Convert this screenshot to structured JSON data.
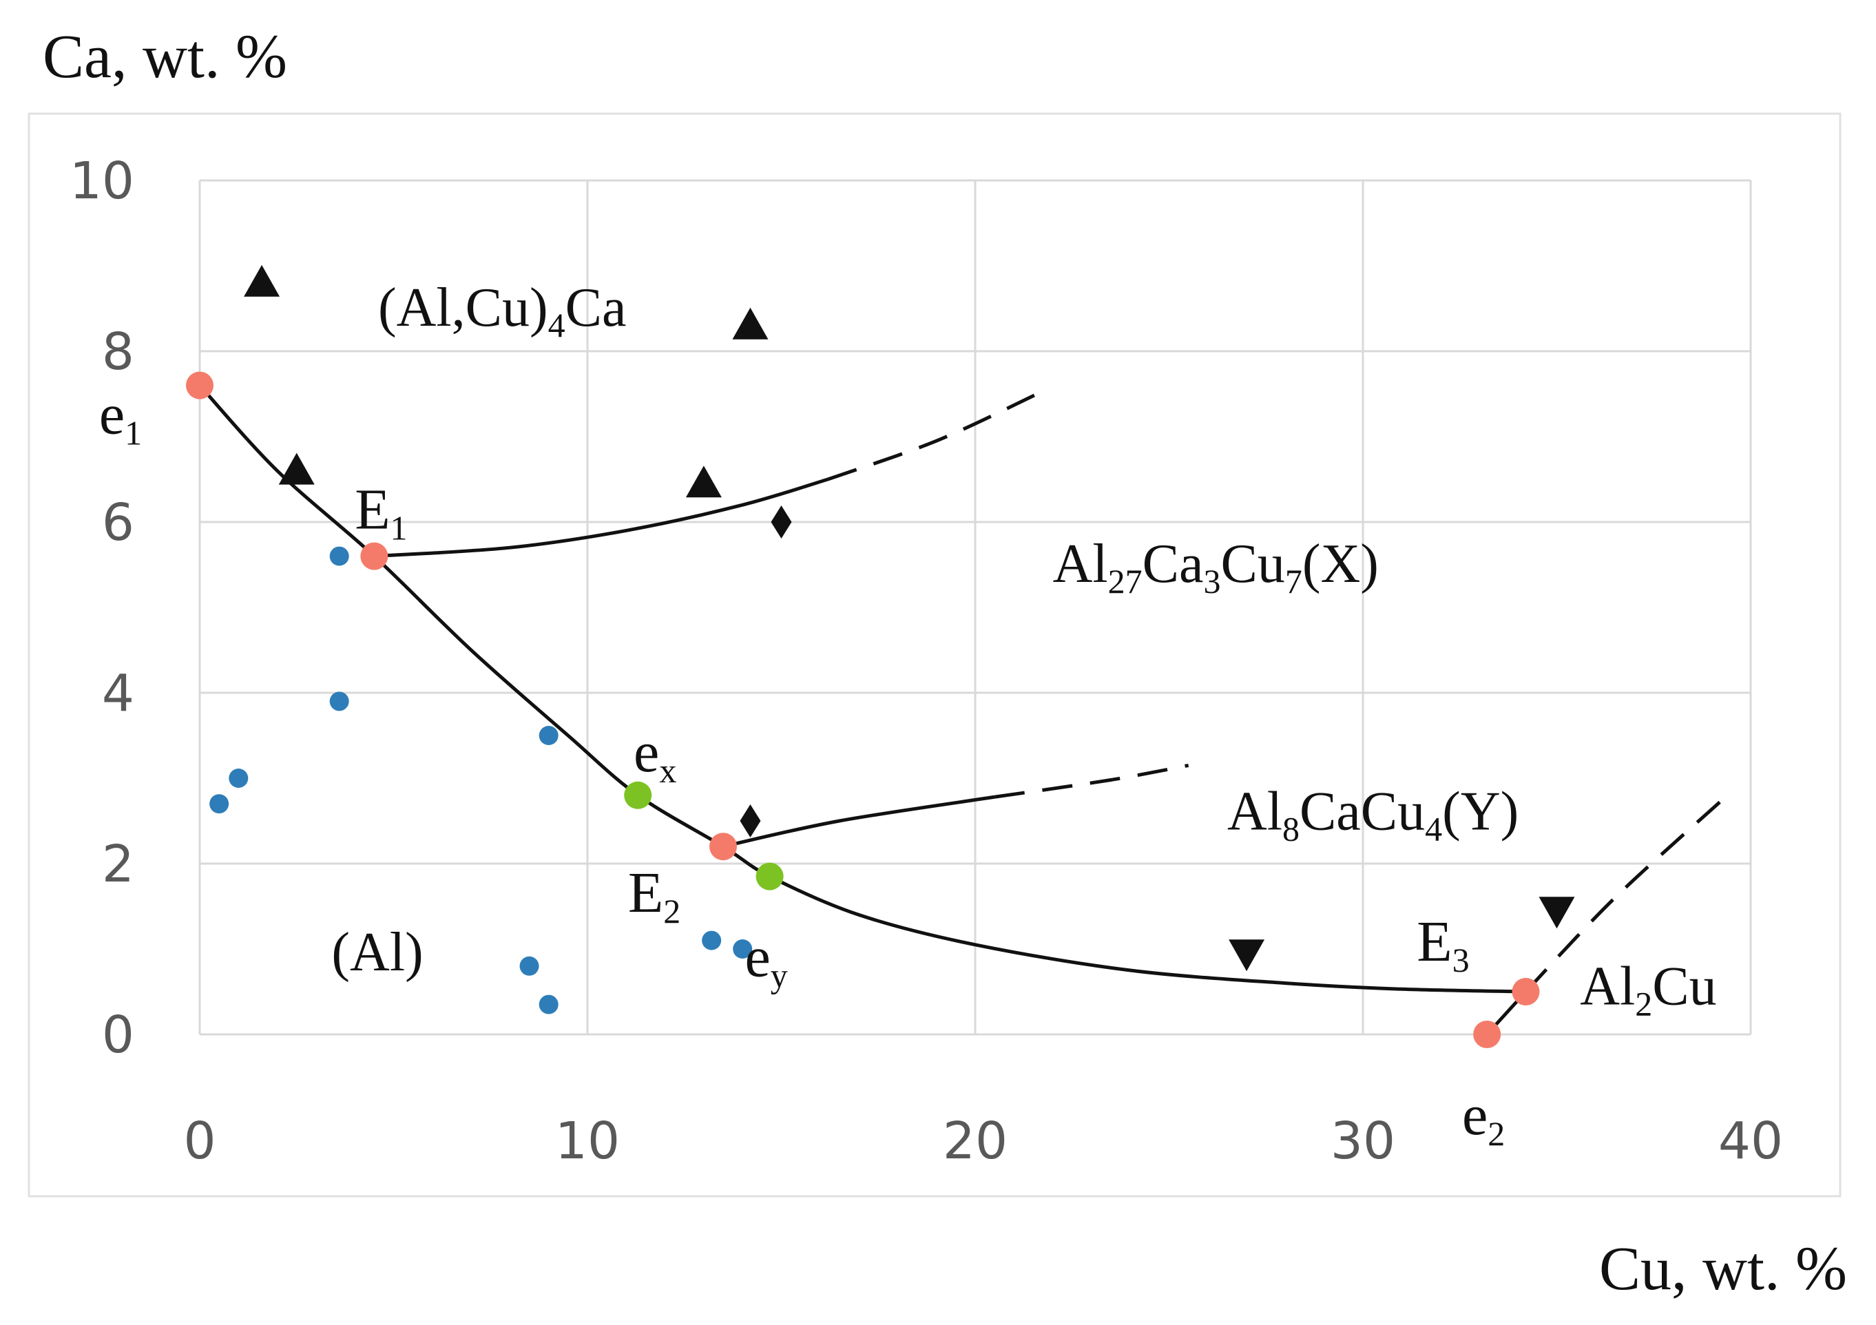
{
  "chart_data": {
    "type": "scatter",
    "ylabel": "Ca, wt. %",
    "xlabel": "Cu, wt. %",
    "xlim": [
      0,
      40
    ],
    "ylim": [
      0,
      10
    ],
    "x_ticks": [
      "0",
      "10",
      "20",
      "30",
      "40"
    ],
    "y_ticks": [
      "0",
      "2",
      "4",
      "6",
      "8",
      "10"
    ],
    "grid": true,
    "colors": {
      "key_point": "#F47B6A",
      "binary_point": "#7CC223",
      "alloy": "#2E7DB8",
      "line": "#111111",
      "grid": "#D9D9D9",
      "frame": "#E0E0E0"
    },
    "curves": [
      {
        "name": "e1-E1-ex-E2-ey-E3",
        "style": "solid",
        "points": [
          [
            0,
            7.6
          ],
          [
            2,
            6.6
          ],
          [
            4.5,
            5.6
          ],
          [
            7,
            4.5
          ],
          [
            9.5,
            3.5
          ],
          [
            11.3,
            2.8
          ],
          [
            13.5,
            2.2
          ],
          [
            14.7,
            1.85
          ],
          [
            17,
            1.4
          ],
          [
            20,
            1.05
          ],
          [
            24,
            0.75
          ],
          [
            28,
            0.6
          ],
          [
            31,
            0.53
          ],
          [
            34.2,
            0.5
          ]
        ]
      },
      {
        "name": "E1-X",
        "style": "solid",
        "points": [
          [
            4.5,
            5.6
          ],
          [
            8,
            5.7
          ],
          [
            11,
            5.9
          ],
          [
            14,
            6.2
          ],
          [
            16.2,
            6.5
          ]
        ]
      },
      {
        "name": "E1-X-ext",
        "style": "dashed",
        "points": [
          [
            16.2,
            6.5
          ],
          [
            19,
            6.95
          ],
          [
            21.6,
            7.5
          ]
        ]
      },
      {
        "name": "E2-Y",
        "style": "solid",
        "points": [
          [
            13.5,
            2.2
          ],
          [
            16.5,
            2.5
          ],
          [
            20.5,
            2.78
          ]
        ]
      },
      {
        "name": "E2-Y-ext",
        "style": "dashed",
        "points": [
          [
            20.5,
            2.78
          ],
          [
            23.5,
            2.98
          ],
          [
            25.5,
            3.15
          ]
        ]
      },
      {
        "name": "e2-E3",
        "style": "solid",
        "points": [
          [
            33.2,
            0
          ],
          [
            34.2,
            0.5
          ]
        ]
      },
      {
        "name": "E3-ext",
        "style": "dashed",
        "points": [
          [
            34.2,
            0.5
          ],
          [
            36.5,
            1.6
          ],
          [
            39.4,
            2.8
          ]
        ]
      }
    ],
    "key_points": [
      {
        "label": "e",
        "sub": "1",
        "x": 0,
        "y": 7.6,
        "color": "key_point",
        "label_pos": "left"
      },
      {
        "label": "E",
        "sub": "1",
        "x": 4.5,
        "y": 5.6,
        "color": "key_point",
        "label_pos": "top"
      },
      {
        "label": "e",
        "sub": "x",
        "x": 11.3,
        "y": 2.8,
        "color": "binary_point",
        "label_pos": "top-right"
      },
      {
        "label": "E",
        "sub": "2",
        "x": 13.5,
        "y": 2.2,
        "color": "key_point",
        "label_pos": "bottom-left"
      },
      {
        "label": "e",
        "sub": "y",
        "x": 14.7,
        "y": 1.85,
        "color": "binary_point",
        "label_pos": "bottom"
      },
      {
        "label": "E",
        "sub": "3",
        "x": 34.2,
        "y": 0.5,
        "color": "key_point",
        "label_pos": "top-left"
      },
      {
        "label": "e",
        "sub": "2",
        "x": 33.2,
        "y": 0.0,
        "color": "key_point",
        "label_pos": "bottom"
      }
    ],
    "alloys": [
      {
        "x": 0.5,
        "y": 2.7
      },
      {
        "x": 1.0,
        "y": 3.0
      },
      {
        "x": 3.6,
        "y": 5.6
      },
      {
        "x": 3.6,
        "y": 3.9
      },
      {
        "x": 9.0,
        "y": 3.5
      },
      {
        "x": 8.5,
        "y": 0.8
      },
      {
        "x": 9.0,
        "y": 0.35
      },
      {
        "x": 13.2,
        "y": 1.1
      },
      {
        "x": 14.0,
        "y": 1.0
      }
    ],
    "markers": [
      {
        "shape": "triangle-up",
        "x": 1.6,
        "y": 8.8
      },
      {
        "shape": "triangle-up",
        "x": 14.2,
        "y": 8.3
      },
      {
        "shape": "triangle-up",
        "x": 2.5,
        "y": 6.6
      },
      {
        "shape": "triangle-up",
        "x": 13.0,
        "y": 6.45
      },
      {
        "shape": "diamond",
        "x": 15.0,
        "y": 6.0
      },
      {
        "shape": "diamond",
        "x": 14.2,
        "y": 2.5
      },
      {
        "shape": "triangle-down",
        "x": 27.0,
        "y": 0.95
      },
      {
        "shape": "triangle-down",
        "x": 35.0,
        "y": 1.45
      }
    ],
    "phase_labels": [
      {
        "parts": [
          [
            "(Al,Cu)",
            ""
          ],
          [
            "4",
            "sub"
          ],
          [
            "Ca",
            ""
          ]
        ],
        "x": 4.6,
        "y": 8.3
      },
      {
        "parts": [
          [
            "Al",
            ""
          ],
          [
            "27",
            "sub"
          ],
          [
            "Ca",
            ""
          ],
          [
            "3",
            "sub"
          ],
          [
            "Cu",
            ""
          ],
          [
            "7",
            "sub"
          ],
          [
            "(X)",
            ""
          ]
        ],
        "x": 22.0,
        "y": 5.3
      },
      {
        "parts": [
          [
            "Al",
            ""
          ],
          [
            "8",
            "sub"
          ],
          [
            "CaCu",
            ""
          ],
          [
            "4",
            "sub"
          ],
          [
            "(Y)",
            ""
          ]
        ],
        "x": 26.5,
        "y": 2.4
      },
      {
        "parts": [
          [
            "Al",
            ""
          ],
          [
            "2",
            "sub"
          ],
          [
            "Cu",
            ""
          ]
        ],
        "x": 35.6,
        "y": 0.35
      },
      {
        "parts": [
          [
            "(Al)",
            ""
          ]
        ],
        "x": 3.4,
        "y": 0.75
      }
    ]
  }
}
